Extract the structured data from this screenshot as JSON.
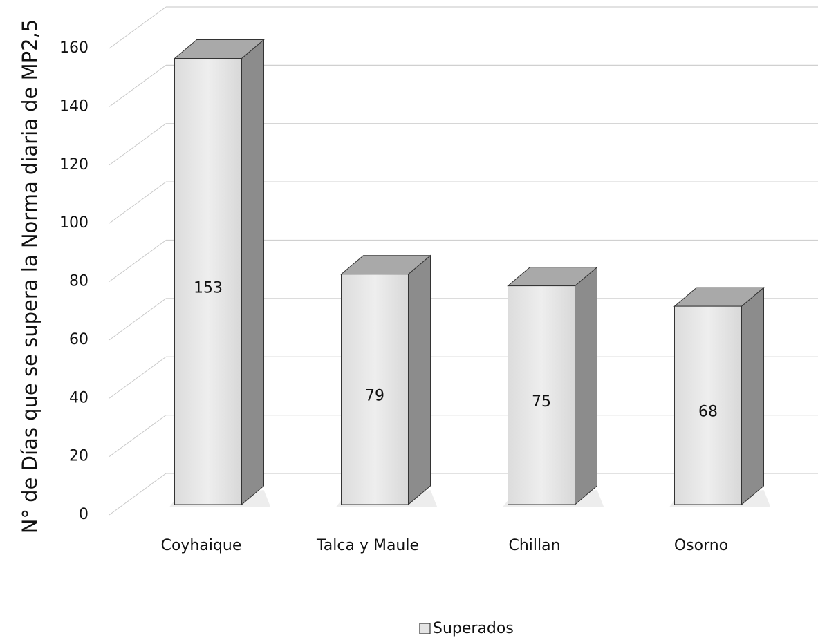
{
  "chart_data": {
    "type": "bar3d",
    "y_axis_label": "N°  de Días que se supera la Norma diaria de MP2,5",
    "categories": [
      "Coyhaique",
      "Talca y Maule",
      "Chillan",
      "Osorno"
    ],
    "series": [
      {
        "name": "Superados",
        "color": "#e4e4e4",
        "values": [
          153,
          79,
          75,
          68
        ]
      }
    ],
    "ylim": [
      0,
      160
    ],
    "yticks": [
      0,
      20,
      40,
      60,
      80,
      100,
      120,
      140,
      160
    ],
    "grid": true,
    "legend": "bottom"
  }
}
